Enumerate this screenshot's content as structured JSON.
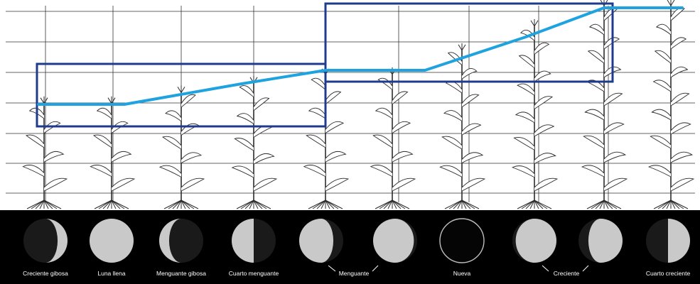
{
  "colors": {
    "background": "#ffffff",
    "grid": "#333333",
    "plant_stroke": "#2b2b2b",
    "box": "#1f3c8c",
    "growth_line": "#1fa3e0",
    "moon_strip": "#000000",
    "moon_lit": "#c9c9c9",
    "moon_dark": "#1a1a1a",
    "label": "#ffffff"
  },
  "moon_phases": [
    {
      "label": "Creciente gibosa",
      "phase": "waxing-gibbous"
    },
    {
      "label": "Luna llena",
      "phase": "full"
    },
    {
      "label": "Menguante gibosa",
      "phase": "waning-gibbous"
    },
    {
      "label": "Cuarto menguante",
      "phase": "last-quarter"
    },
    {
      "label": "",
      "phase": "waning-crescent"
    },
    {
      "label": "",
      "phase": "waning-crescent-thin"
    },
    {
      "label": "Nueva",
      "phase": "new"
    },
    {
      "label": "",
      "phase": "waxing-crescent-thin"
    },
    {
      "label": "",
      "phase": "waxing-crescent"
    },
    {
      "label": "Cuarto creciente",
      "phase": "first-quarter"
    }
  ],
  "group_labels": {
    "menguante": "Menguante",
    "creciente": "Creciente"
  },
  "plant_count": 10,
  "growth_levels": [
    0.19,
    0.19,
    0.28,
    0.36,
    0.43,
    0.43,
    0.63,
    0.83,
    1.0,
    1.0
  ]
}
